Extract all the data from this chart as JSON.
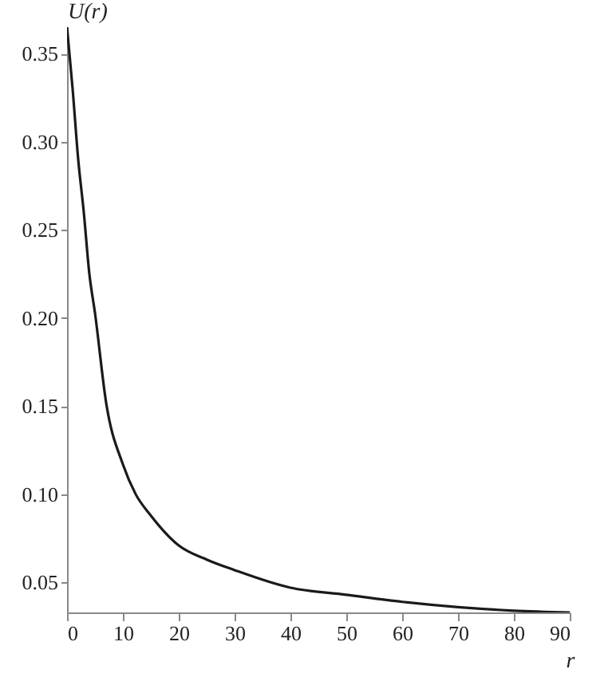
{
  "chart_data": {
    "type": "line",
    "xlabel": "r",
    "ylabel": "U(r)",
    "x": [
      0,
      1,
      2,
      3,
      4,
      5,
      7,
      10,
      12.3,
      15,
      20,
      25,
      30,
      40,
      50,
      60,
      70,
      80,
      90
    ],
    "series": [
      {
        "color": "#1a1a1a",
        "values": [
          0.365,
          0.33,
          0.29,
          0.26,
          0.225,
          0.203,
          0.152,
          0.117,
          0.1,
          0.088,
          0.071,
          0.063,
          0.057,
          0.047,
          0.043,
          0.039,
          0.036,
          0.034,
          0.033
        ]
      }
    ],
    "xlim": [
      0,
      90
    ],
    "xticks": [
      0,
      10,
      20,
      30,
      40,
      50,
      60,
      70,
      80,
      90
    ],
    "ylim": [
      0.033,
      0.365
    ],
    "yticks": [
      0.05,
      {
        "value": 0.1,
        "label": "0.10"
      },
      0.15,
      {
        "value": 0.2,
        "label": "0.20"
      },
      0.25,
      {
        "value": 0.3,
        "label": "0.30"
      },
      0.35
    ],
    "grid": false,
    "marker": "none",
    "line_style": "solid"
  }
}
